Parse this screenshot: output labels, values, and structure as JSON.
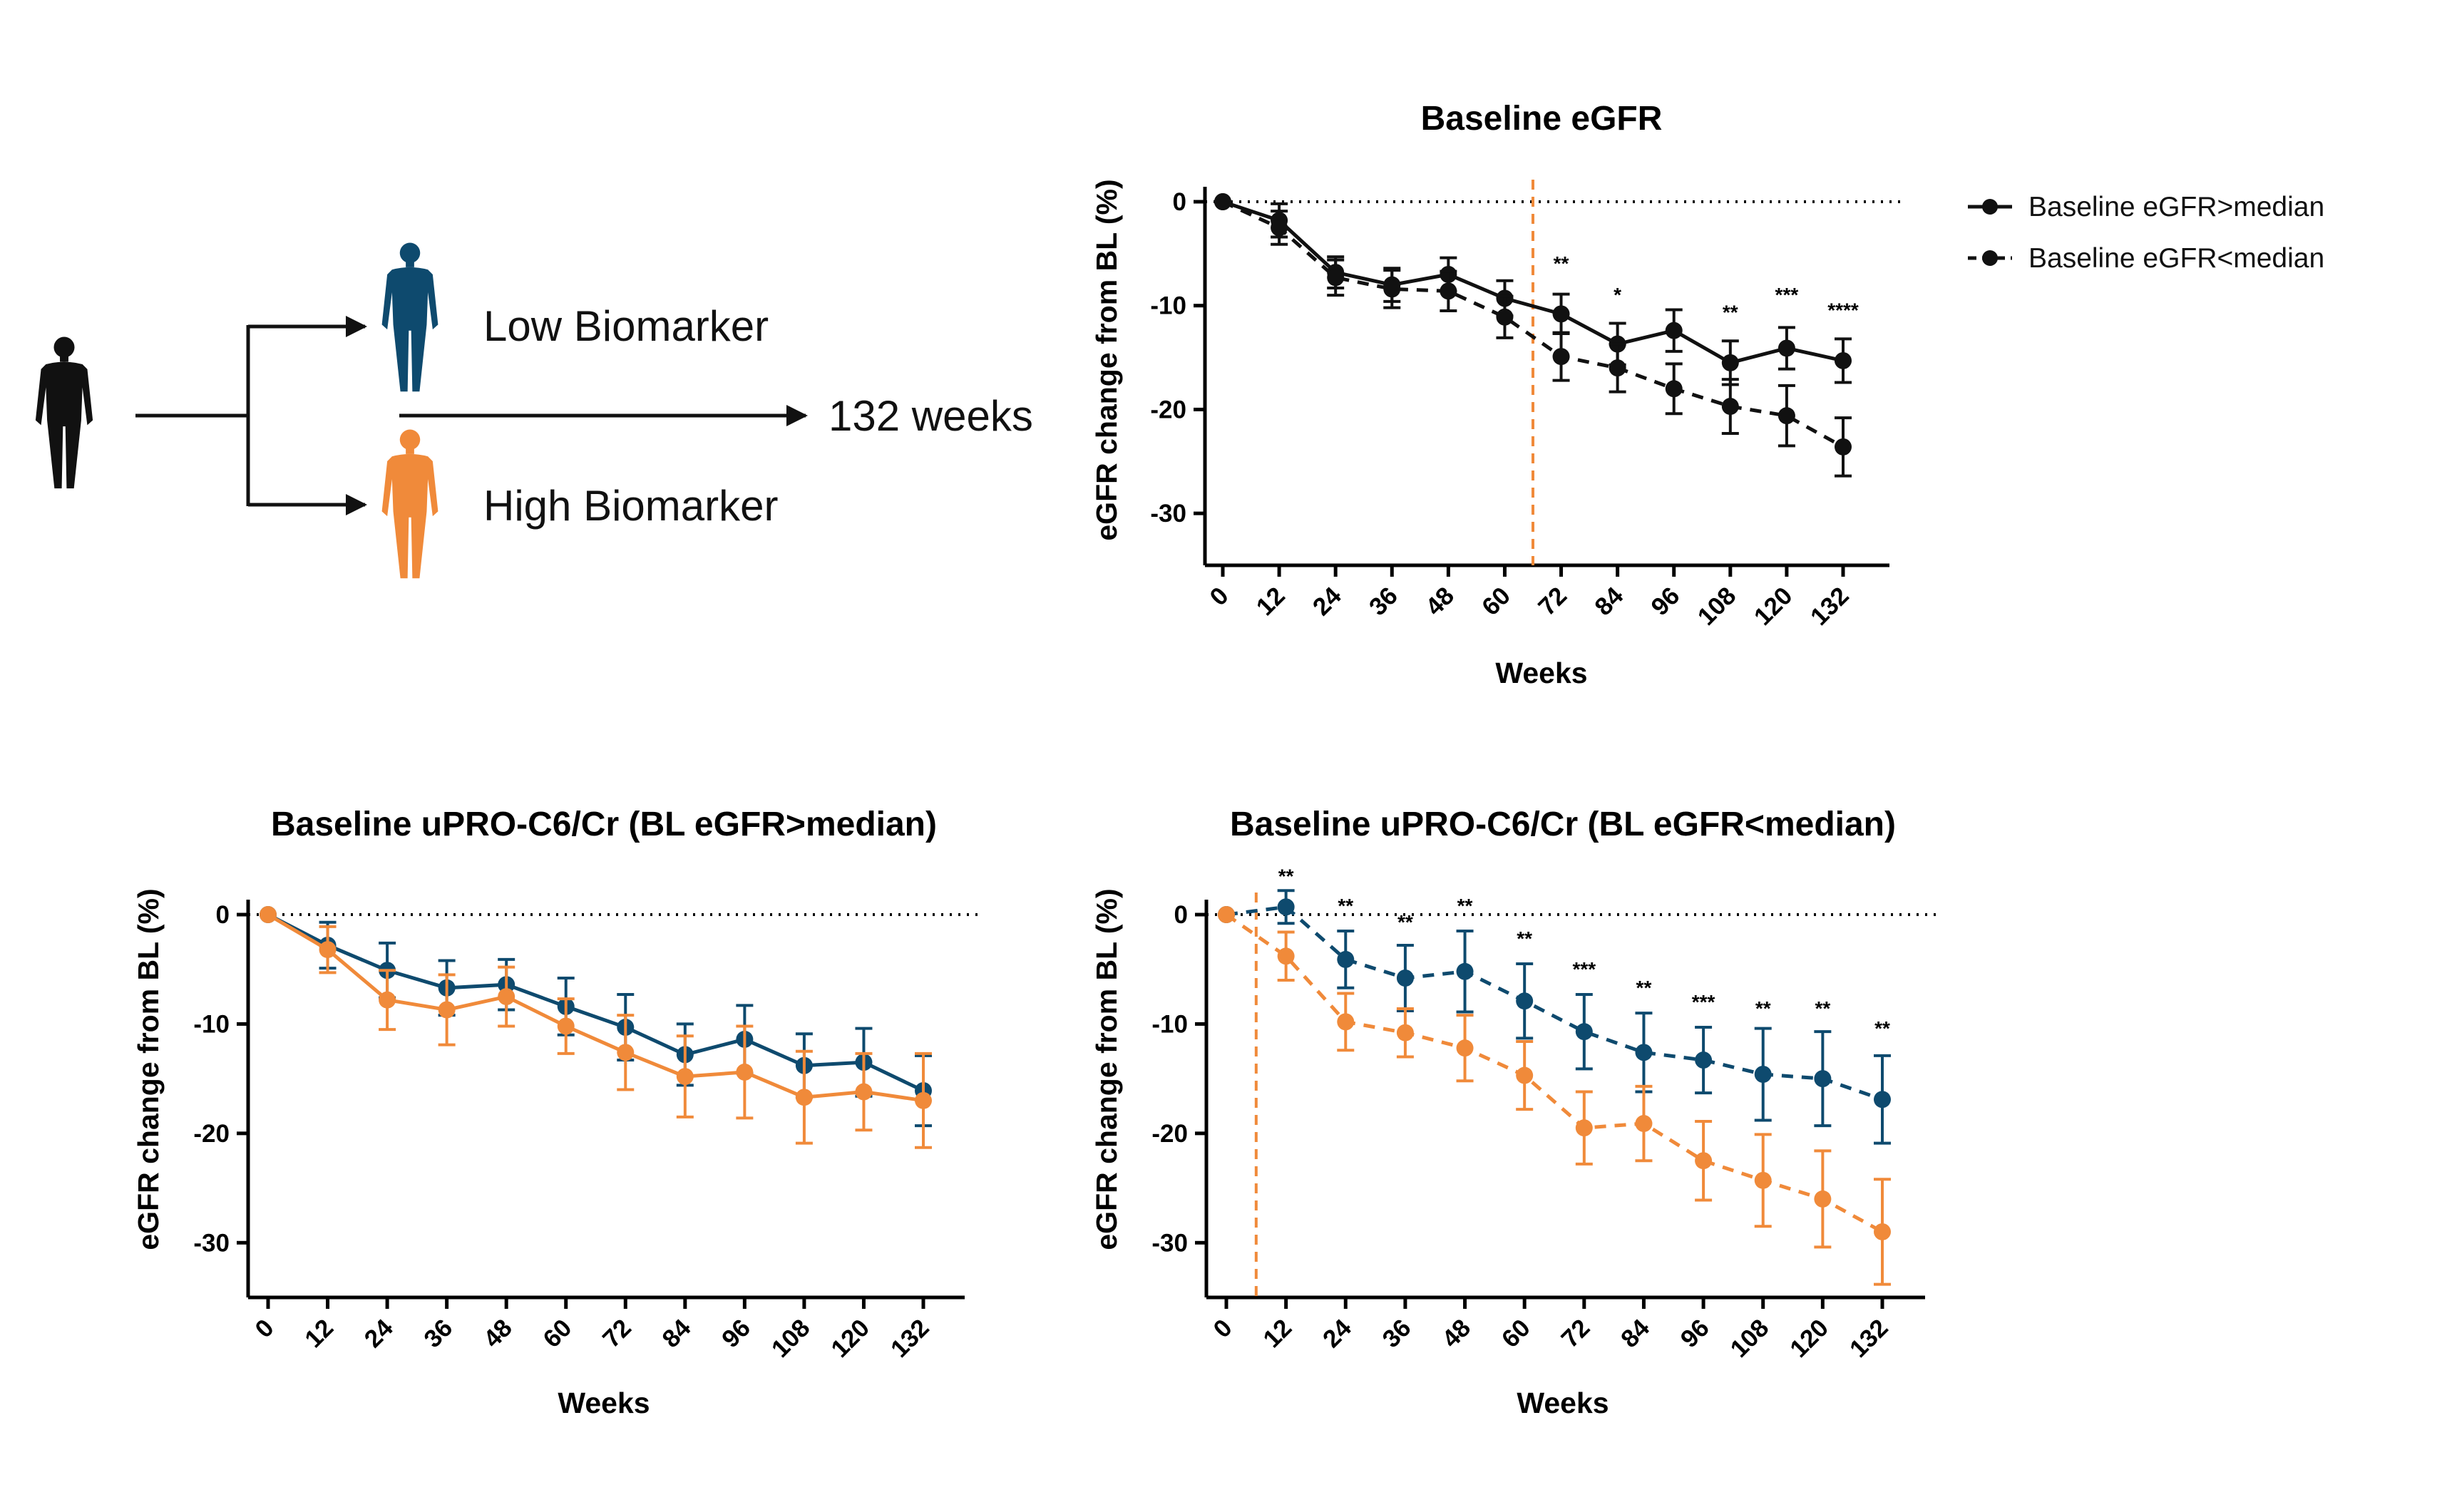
{
  "diagram": {
    "low_label": "Low Biomarker",
    "high_label": "High Biomarker",
    "duration_label": "132 weeks",
    "person_icon": "person-icon",
    "colors": {
      "person": "#111111",
      "low": "#0e4a6e",
      "high": "#f08a3a"
    }
  },
  "colors": {
    "black": "#111111",
    "navy": "#0e4a6e",
    "orange": "#f08a3a",
    "ref_line": "#f08a3a"
  },
  "chart_data": [
    {
      "type": "line",
      "title": "Baseline eGFR",
      "xlabel": "Weeks",
      "ylabel": "eGFR change from BL (%)",
      "x": [
        0,
        12,
        24,
        36,
        48,
        60,
        72,
        84,
        96,
        108,
        120,
        132
      ],
      "ylim": [
        -35,
        2
      ],
      "yticks": [
        0,
        -10,
        -20,
        -30
      ],
      "reference_x": 66,
      "legend_position": "right",
      "series": [
        {
          "name": "Baseline eGFR>median",
          "style": "solid",
          "color": "#111111",
          "values": [
            0,
            -1.8,
            -6.8,
            -8.0,
            -7.0,
            -9.3,
            -10.8,
            -13.7,
            -12.4,
            -15.5,
            -14.1,
            -15.3
          ],
          "errors": [
            0,
            1.6,
            1.5,
            1.6,
            1.6,
            1.7,
            1.9,
            2.0,
            2.0,
            2.1,
            2.0,
            2.1
          ]
        },
        {
          "name": "Baseline eGFR<median",
          "style": "dashed",
          "color": "#111111",
          "values": [
            0,
            -2.5,
            -7.3,
            -8.4,
            -8.6,
            -11.1,
            -14.9,
            -16.0,
            -18.0,
            -19.7,
            -20.6,
            -23.6
          ],
          "errors": [
            0,
            1.6,
            1.7,
            1.8,
            1.9,
            2.0,
            2.3,
            2.3,
            2.4,
            2.6,
            2.9,
            2.8
          ]
        }
      ],
      "annotations": [
        {
          "x": 72,
          "text": "**",
          "y": -6.6
        },
        {
          "x": 84,
          "text": "*",
          "y": -9.6
        },
        {
          "x": 108,
          "text": "**",
          "y": -11.3
        },
        {
          "x": 120,
          "text": "***",
          "y": -9.6
        },
        {
          "x": 132,
          "text": "****",
          "y": -11.1
        }
      ]
    },
    {
      "type": "line",
      "title": "Baseline uPRO-C6/Cr (BL eGFR>median)",
      "xlabel": "Weeks",
      "ylabel": "eGFR change from BL (%)",
      "x": [
        0,
        12,
        24,
        36,
        48,
        60,
        72,
        84,
        96,
        108,
        120,
        132
      ],
      "ylim": [
        -35,
        2
      ],
      "yticks": [
        0,
        -10,
        -20,
        -30
      ],
      "series": [
        {
          "name": "",
          "style": "solid",
          "color": "#0e4a6e",
          "values": [
            0,
            -2.8,
            -5.1,
            -6.7,
            -6.4,
            -8.4,
            -10.3,
            -12.8,
            -11.4,
            -13.8,
            -13.5,
            -16.1
          ],
          "errors": [
            0,
            2.1,
            2.5,
            2.5,
            2.3,
            2.6,
            3.0,
            2.8,
            3.1,
            2.9,
            3.1,
            3.2
          ]
        },
        {
          "name": "",
          "style": "solid",
          "color": "#f08a3a",
          "values": [
            0,
            -3.2,
            -7.8,
            -8.7,
            -7.5,
            -10.2,
            -12.6,
            -14.8,
            -14.4,
            -16.7,
            -16.2,
            -17.0
          ],
          "errors": [
            0,
            2.1,
            2.7,
            3.2,
            2.7,
            2.5,
            3.4,
            3.7,
            4.2,
            4.2,
            3.5,
            4.3
          ]
        }
      ]
    },
    {
      "type": "line",
      "title": "Baseline uPRO-C6/Cr (BL eGFR<median)",
      "xlabel": "Weeks",
      "ylabel": "eGFR change from BL (%)",
      "x": [
        0,
        12,
        24,
        36,
        48,
        60,
        72,
        84,
        96,
        108,
        120,
        132
      ],
      "ylim": [
        -35,
        2
      ],
      "yticks": [
        0,
        -10,
        -20,
        -30
      ],
      "reference_x": 6,
      "series": [
        {
          "name": "",
          "style": "dashed",
          "color": "#0e4a6e",
          "values": [
            0,
            0.7,
            -4.1,
            -5.8,
            -5.2,
            -7.9,
            -10.7,
            -12.6,
            -13.3,
            -14.6,
            -15.0,
            -16.9
          ],
          "errors": [
            0,
            1.5,
            2.6,
            3.0,
            3.7,
            3.4,
            3.4,
            3.6,
            3.0,
            4.2,
            4.3,
            4.0
          ]
        },
        {
          "name": "",
          "style": "dashed",
          "color": "#f08a3a",
          "values": [
            0,
            -3.8,
            -9.8,
            -10.8,
            -12.2,
            -14.7,
            -19.5,
            -19.1,
            -22.5,
            -24.3,
            -26.0,
            -29.0
          ],
          "errors": [
            0,
            2.2,
            2.6,
            2.2,
            3.0,
            3.1,
            3.3,
            3.4,
            3.6,
            4.2,
            4.4,
            4.8
          ]
        }
      ],
      "annotations": [
        {
          "x": 12,
          "text": "**",
          "y": 2.9
        },
        {
          "x": 24,
          "text": "**",
          "y": 0.2
        },
        {
          "x": 36,
          "text": "**",
          "y": -1.3
        },
        {
          "x": 48,
          "text": "**",
          "y": 0.2
        },
        {
          "x": 60,
          "text": "**",
          "y": -2.8
        },
        {
          "x": 72,
          "text": "***",
          "y": -5.6
        },
        {
          "x": 84,
          "text": "**",
          "y": -7.3
        },
        {
          "x": 96,
          "text": "***",
          "y": -8.6
        },
        {
          "x": 108,
          "text": "**",
          "y": -9.2
        },
        {
          "x": 120,
          "text": "**",
          "y": -9.2
        },
        {
          "x": 132,
          "text": "**",
          "y": -11.0
        }
      ]
    }
  ]
}
